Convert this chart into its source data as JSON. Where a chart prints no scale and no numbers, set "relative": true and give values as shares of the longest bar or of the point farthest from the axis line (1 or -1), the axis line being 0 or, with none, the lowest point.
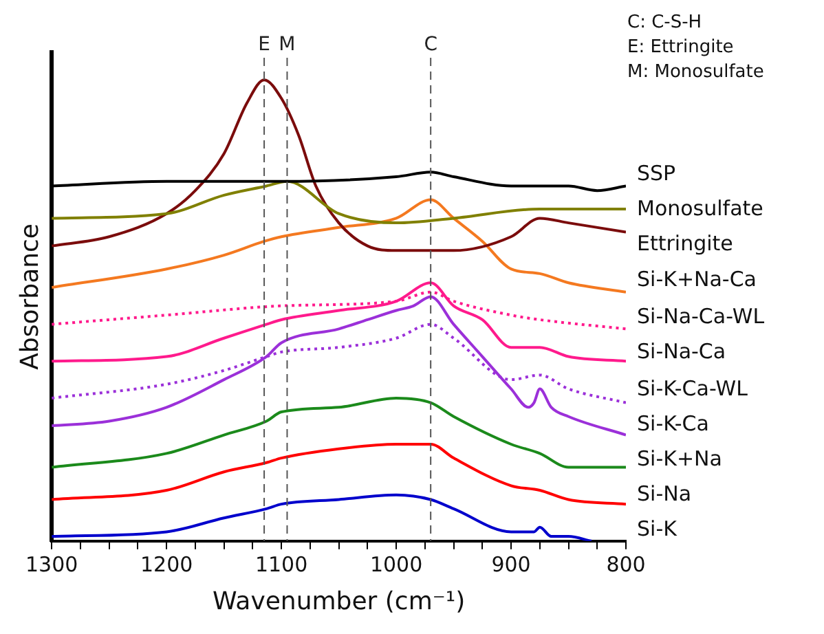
{
  "chart_data": {
    "type": "line",
    "relative": true,
    "xlabel": "Wavenumber (cm⁻¹)",
    "ylabel": "Absorbance",
    "xlim": [
      1300,
      800
    ],
    "xticks": [
      1300,
      {
        "value": 1275,
        "label": null
      },
      {
        "value": 1250,
        "label": null
      },
      {
        "value": 1225,
        "label": null
      },
      1200,
      {
        "value": 1175,
        "label": null
      },
      {
        "value": 1150,
        "label": null
      },
      {
        "value": 1125,
        "label": null
      },
      1100,
      {
        "value": 1075,
        "label": null
      },
      {
        "value": 1050,
        "label": null
      },
      {
        "value": 1025,
        "label": null
      },
      1000,
      {
        "value": 975,
        "label": null
      },
      {
        "value": 950,
        "label": null
      },
      {
        "value": 925,
        "label": null
      },
      900,
      {
        "value": 875,
        "label": null
      },
      {
        "value": 850,
        "label": null
      },
      {
        "value": 825,
        "label": null
      },
      800
    ],
    "grid": false,
    "legend": false,
    "marker": "none",
    "line_style": "solid",
    "ref_lines": [
      {
        "axis": "x",
        "value": 1115,
        "label": "E",
        "color": "#555555",
        "line_style": "dashed"
      },
      {
        "axis": "x",
        "value": 1095,
        "label": "M",
        "color": "#555555",
        "line_style": "dashed"
      },
      {
        "axis": "x",
        "value": 970,
        "label": "C",
        "color": "#555555",
        "line_style": "dashed"
      }
    ],
    "annotations": [
      "C: C-S-H",
      "E: Ettringite",
      "M: Monosulfate"
    ],
    "series": [
      {
        "name": "SSP",
        "color": "#000000",
        "x": [
          1300,
          1200,
          1100,
          1000,
          970,
          950,
          900,
          850,
          825,
          800
        ],
        "values": [
          0.77,
          0.78,
          0.78,
          0.79,
          0.8,
          0.79,
          0.77,
          0.77,
          0.76,
          0.77
        ]
      },
      {
        "name": "Monosulfate",
        "color": "#808000",
        "x": [
          1300,
          1200,
          1150,
          1113,
          1095,
          1050,
          1000,
          950,
          875,
          800
        ],
        "values": [
          0.7,
          0.71,
          0.75,
          0.77,
          0.78,
          0.71,
          0.69,
          0.7,
          0.72,
          0.72
        ]
      },
      {
        "name": "Ettringite",
        "color": "#7b0c0c",
        "x": [
          1300,
          1250,
          1200,
          1175,
          1150,
          1130,
          1115,
          1100,
          1085,
          1070,
          1050,
          1025,
          1000,
          985,
          970,
          950,
          900,
          875,
          850,
          800
        ],
        "values": [
          0.64,
          0.66,
          0.71,
          0.76,
          0.84,
          0.95,
          1.0,
          0.96,
          0.88,
          0.77,
          0.69,
          0.64,
          0.63,
          0.63,
          0.63,
          0.63,
          0.66,
          0.7,
          0.69,
          0.67
        ]
      },
      {
        "name": "Si-K+Na-Ca",
        "color": "#f47920",
        "x": [
          1300,
          1200,
          1150,
          1115,
          1100,
          1050,
          1000,
          970,
          950,
          925,
          900,
          875,
          850,
          800
        ],
        "values": [
          0.55,
          0.59,
          0.62,
          0.65,
          0.66,
          0.68,
          0.7,
          0.74,
          0.7,
          0.65,
          0.59,
          0.58,
          0.56,
          0.54
        ]
      },
      {
        "name": "Si-Na-Ca-WL",
        "color": "#ff1a8c",
        "line_style": "dotted",
        "x": [
          1300,
          1200,
          1100,
          1000,
          970,
          950,
          900,
          875,
          800
        ],
        "values": [
          0.47,
          0.49,
          0.51,
          0.52,
          0.54,
          0.52,
          0.49,
          0.48,
          0.46
        ]
      },
      {
        "name": "Si-Na-Ca",
        "color": "#ff1a8c",
        "x": [
          1300,
          1200,
          1150,
          1113,
          1100,
          1050,
          1000,
          970,
          950,
          925,
          900,
          875,
          850,
          800
        ],
        "values": [
          0.39,
          0.4,
          0.44,
          0.47,
          0.48,
          0.5,
          0.52,
          0.56,
          0.51,
          0.48,
          0.42,
          0.42,
          0.4,
          0.39
        ]
      },
      {
        "name": "Si-K-Ca-WL",
        "color": "#9b30d9",
        "line_style": "dotted",
        "x": [
          1300,
          1200,
          1150,
          1113,
          1100,
          1050,
          1000,
          970,
          950,
          900,
          875,
          850,
          800
        ],
        "values": [
          0.31,
          0.34,
          0.37,
          0.4,
          0.41,
          0.42,
          0.44,
          0.47,
          0.44,
          0.35,
          0.36,
          0.33,
          0.3
        ]
      },
      {
        "name": "Si-K-Ca",
        "color": "#9b30d9",
        "x": [
          1300,
          1250,
          1200,
          1150,
          1113,
          1100,
          1050,
          1025,
          1000,
          985,
          970,
          950,
          925,
          900,
          885,
          880,
          875,
          865,
          850,
          800
        ],
        "values": [
          0.25,
          0.26,
          0.29,
          0.35,
          0.4,
          0.43,
          0.46,
          0.48,
          0.5,
          0.51,
          0.53,
          0.47,
          0.4,
          0.33,
          0.29,
          0.3,
          0.33,
          0.29,
          0.27,
          0.23
        ]
      },
      {
        "name": "Si-K+Na",
        "color": "#1b8a1b",
        "x": [
          1300,
          1200,
          1150,
          1113,
          1100,
          1050,
          1000,
          970,
          950,
          900,
          875,
          850,
          800
        ],
        "values": [
          0.16,
          0.19,
          0.23,
          0.26,
          0.28,
          0.29,
          0.31,
          0.3,
          0.27,
          0.21,
          0.19,
          0.16,
          0.16
        ]
      },
      {
        "name": "Si-Na",
        "color": "#ff0000",
        "x": [
          1300,
          1200,
          1150,
          1113,
          1100,
          1050,
          1000,
          970,
          950,
          900,
          875,
          850,
          800
        ],
        "values": [
          0.09,
          0.11,
          0.15,
          0.17,
          0.18,
          0.2,
          0.21,
          0.21,
          0.18,
          0.12,
          0.11,
          0.09,
          0.08
        ]
      },
      {
        "name": "Si-K",
        "color": "#0000cc",
        "x": [
          1300,
          1200,
          1150,
          1113,
          1100,
          1050,
          1000,
          970,
          950,
          900,
          880,
          875,
          865,
          850,
          830
        ],
        "values": [
          0.01,
          0.02,
          0.05,
          0.07,
          0.08,
          0.09,
          0.1,
          0.09,
          0.07,
          0.02,
          0.02,
          0.03,
          0.01,
          0.01,
          0
        ]
      }
    ]
  }
}
